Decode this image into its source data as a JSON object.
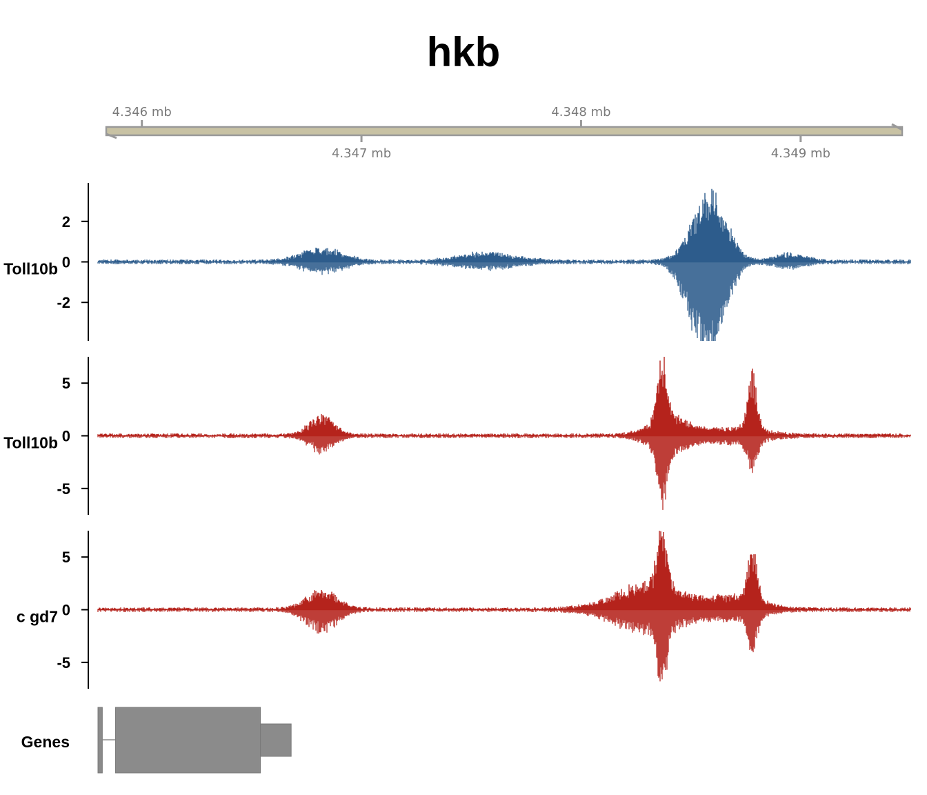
{
  "chart_data": {
    "type": "genome-browser-tracks",
    "title": "hkb",
    "genome_axis": {
      "unit": "mb",
      "range_mb": [
        4.3458,
        4.3495
      ],
      "ticks": [
        {
          "value": 4.346,
          "label": "4.346 mb",
          "side": "top"
        },
        {
          "value": 4.347,
          "label": "4.347 mb",
          "side": "bottom"
        },
        {
          "value": 4.348,
          "label": "4.348 mb",
          "side": "top"
        },
        {
          "value": 4.349,
          "label": "4.349 mb",
          "side": "bottom"
        }
      ]
    },
    "tracks": [
      {
        "label": "Toll10b",
        "color": "#2d5c8c",
        "ylim": [
          -3.9,
          3.9
        ],
        "yticks": [
          {
            "value": 2,
            "label": "2"
          },
          {
            "value": 0,
            "label": "0"
          },
          {
            "value": -2,
            "label": "-2"
          }
        ],
        "peaks": [
          {
            "center_mb": 4.34682,
            "width_mb": 0.00013,
            "pos": 0.7,
            "neg": 0.55
          },
          {
            "center_mb": 4.34757,
            "width_mb": 0.00018,
            "pos": 0.45,
            "neg": 0.35
          },
          {
            "center_mb": 4.34855,
            "width_mb": 0.0001,
            "pos": 2.2,
            "neg": 3.9
          },
          {
            "center_mb": 4.34862,
            "width_mb": 9e-05,
            "pos": 2.1,
            "neg": 2.0
          },
          {
            "center_mb": 4.34895,
            "width_mb": 0.0001,
            "pos": 0.4,
            "neg": 0.3
          }
        ]
      },
      {
        "label": "Toll10b",
        "color": "#b5231c",
        "ylim": [
          -7.5,
          7.5
        ],
        "yticks": [
          {
            "value": 5,
            "label": "5"
          },
          {
            "value": 0,
            "label": "0"
          },
          {
            "value": -5,
            "label": "-5"
          }
        ],
        "peaks": [
          {
            "center_mb": 4.34682,
            "width_mb": 8e-05,
            "pos": 2.0,
            "neg": 1.6
          },
          {
            "center_mb": 4.34837,
            "width_mb": 3e-05,
            "pos": 7.4,
            "neg": 6.0
          },
          {
            "center_mb": 4.3484,
            "width_mb": 0.00012,
            "pos": 2.0,
            "neg": 1.8
          },
          {
            "center_mb": 4.34878,
            "width_mb": 3e-05,
            "pos": 6.0,
            "neg": 3.3
          },
          {
            "center_mb": 4.3487,
            "width_mb": 0.00018,
            "pos": 0.8,
            "neg": 0.8
          }
        ]
      },
      {
        "label": "c gd7",
        "color": "#b5231c",
        "ylim": [
          -7.5,
          7.5
        ],
        "yticks": [
          {
            "value": 5,
            "label": "5"
          },
          {
            "value": 0,
            "label": "0"
          },
          {
            "value": -5,
            "label": "-5"
          }
        ],
        "peaks": [
          {
            "center_mb": 4.34682,
            "width_mb": 0.0001,
            "pos": 1.9,
            "neg": 2.2
          },
          {
            "center_mb": 4.34837,
            "width_mb": 3e-05,
            "pos": 7.5,
            "neg": 6.3
          },
          {
            "center_mb": 4.34832,
            "width_mb": 0.00022,
            "pos": 2.8,
            "neg": 2.5
          },
          {
            "center_mb": 4.34878,
            "width_mb": 3e-05,
            "pos": 5.5,
            "neg": 3.6
          },
          {
            "center_mb": 4.34872,
            "width_mb": 0.00016,
            "pos": 1.3,
            "neg": 1.0
          }
        ]
      }
    ],
    "genes_track": {
      "label": "Genes",
      "color": "#8b8b8b",
      "model": [
        {
          "kind": "exon",
          "start_mb": 4.3458,
          "end_mb": 4.34582
        },
        {
          "kind": "intron",
          "start_mb": 4.34582,
          "end_mb": 4.34588
        },
        {
          "kind": "cds",
          "start_mb": 4.34588,
          "end_mb": 4.34654
        },
        {
          "kind": "utr",
          "start_mb": 4.34654,
          "end_mb": 4.34668
        }
      ]
    }
  }
}
